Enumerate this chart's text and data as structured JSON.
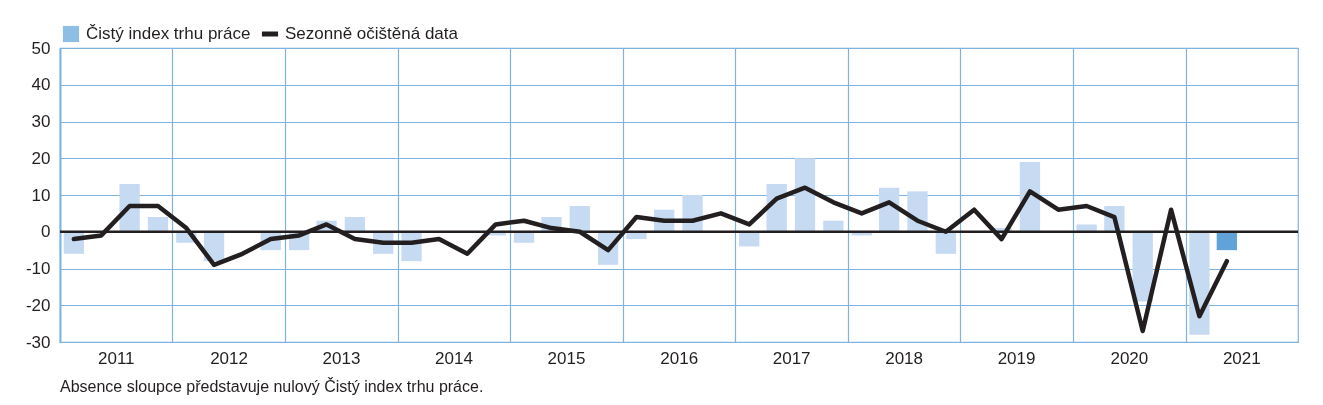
{
  "chart_data": {
    "type": "bar",
    "x": [
      "2011-02-15",
      "2011-05-15",
      "2011-08-15",
      "2011-11-15",
      "2012-02-15",
      "2012-05-15",
      "2012-08-15",
      "2012-11-15",
      "2013-02-15",
      "2013-05-15",
      "2013-08-15",
      "2013-11-15",
      "2014-02-15",
      "2014-05-15",
      "2014-08-15",
      "2014-11-15",
      "2015-02-15",
      "2015-05-15",
      "2015-08-15",
      "2015-11-15",
      "2016-02-15",
      "2016-05-15",
      "2016-08-15",
      "2016-11-15",
      "2017-02-15",
      "2017-05-15",
      "2017-08-15",
      "2017-11-15",
      "2018-02-15",
      "2018-05-15",
      "2018-08-15",
      "2018-11-15",
      "2019-02-15",
      "2019-05-15",
      "2019-08-15",
      "2019-11-15",
      "2020-02-15",
      "2020-05-15",
      "2020-08-15",
      "2020-11-15",
      "2021-02-15",
      "2021-05-15"
    ],
    "series": [
      {
        "name": "Čistý index trhu práce",
        "color": "#5fa3d8",
        "colors": [
          "#c6daf2",
          "#c6daf2",
          "#c6daf2",
          "#c6daf2",
          "#c6daf2",
          "#c6daf2",
          "#c6daf2",
          "#c6daf2",
          "#c6daf2",
          "#c6daf2",
          "#c6daf2",
          "#c6daf2",
          "#c6daf2",
          "#c6daf2",
          "#c6daf2",
          "#c6daf2",
          "#c6daf2",
          "#c6daf2",
          "#c6daf2",
          "#c6daf2",
          "#c6daf2",
          "#c6daf2",
          "#c6daf2",
          "#c6daf2",
          "#c6daf2",
          "#c6daf2",
          "#c6daf2",
          "#c6daf2",
          "#c6daf2",
          "#c6daf2",
          "#c6daf2",
          "#c6daf2",
          "#c6daf2",
          "#c6daf2",
          "#c6daf2",
          "#c6daf2",
          "#c6daf2",
          "#c6daf2",
          "#c6daf2",
          "#c6daf2",
          "#c6daf2",
          "#5fa3d8"
        ],
        "values": [
          -6,
          0,
          13,
          4,
          -3,
          -8,
          0,
          -5,
          -5,
          3,
          4,
          -6,
          -8,
          0,
          0,
          -1,
          -3,
          4,
          7,
          -9,
          -2,
          6,
          10,
          0,
          -4,
          13,
          20,
          3,
          -1,
          12,
          11,
          -6,
          0,
          1,
          19,
          0,
          2,
          7,
          -19,
          0,
          -28,
          -5
        ]
      },
      {
        "type": "line",
        "name": "Sezonně očištěná data",
        "color": "#231f20",
        "values": [
          -2,
          -1,
          7,
          7,
          1,
          -9,
          -6,
          -2,
          -1,
          2,
          -2,
          -3,
          -3,
          -2,
          -6,
          2,
          3,
          1,
          0,
          -5,
          4,
          3,
          3,
          5,
          2,
          9,
          12,
          8,
          5,
          8,
          3,
          0,
          6,
          -2,
          11,
          6,
          7,
          4,
          -27,
          6,
          -23,
          -8
        ]
      }
    ],
    "xlim": [
      "2011-01",
      "2022-01"
    ],
    "xticks": [
      {
        "value": "2011-07",
        "label": "2011"
      },
      {
        "value": "2012-01",
        "label": null
      },
      {
        "value": "2012-07",
        "label": "2012"
      },
      {
        "value": "2013-01",
        "label": null
      },
      {
        "value": "2013-07",
        "label": "2013"
      },
      {
        "value": "2014-01",
        "label": null
      },
      {
        "value": "2014-07",
        "label": "2014"
      },
      {
        "value": "2015-01",
        "label": null
      },
      {
        "value": "2015-07",
        "label": "2015"
      },
      {
        "value": "2016-01",
        "label": null
      },
      {
        "value": "2016-07",
        "label": "2016"
      },
      {
        "value": "2017-01",
        "label": null
      },
      {
        "value": "2017-07",
        "label": "2017"
      },
      {
        "value": "2018-01",
        "label": null
      },
      {
        "value": "2018-07",
        "label": "2018"
      },
      {
        "value": "2019-01",
        "label": null
      },
      {
        "value": "2019-07",
        "label": "2019"
      },
      {
        "value": "2020-01",
        "label": null
      },
      {
        "value": "2020-07",
        "label": "2020"
      },
      {
        "value": "2021-01",
        "label": null
      },
      {
        "value": "2021-07",
        "label": "2021"
      }
    ],
    "ylim": [
      -30,
      50
    ],
    "yticks": [
      -30,
      -20,
      -10,
      0,
      10,
      20,
      30,
      40,
      50
    ],
    "grid": true,
    "legend": "top",
    "ref_lines": [
      {
        "axis": "y",
        "value": 0,
        "color": "#231f20"
      }
    ],
    "annotations": [
      "Absence sloupce představuje nulový Čistý index trhu práce."
    ]
  }
}
